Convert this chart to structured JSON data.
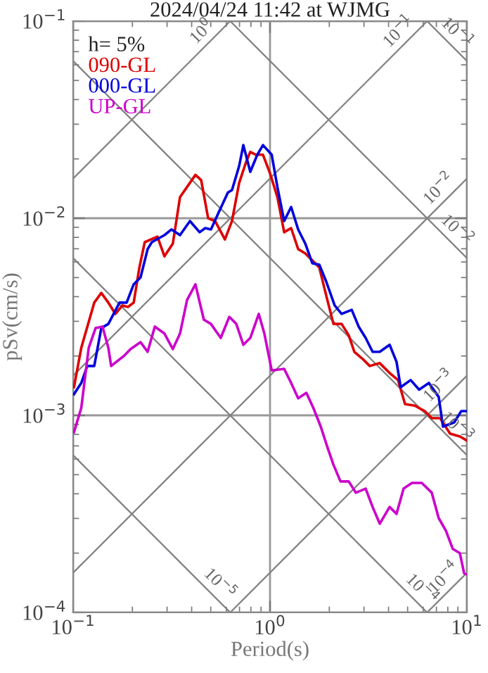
{
  "chart_data": {
    "type": "line",
    "title": "2024/04/24 11:42 at WJMG",
    "xlabel": "Period(s)",
    "ylabel": "pSv(cm/s)",
    "legend_title": "h= 5%",
    "legend": "top left",
    "log": "xy",
    "grid": true,
    "xlim": [
      0.1,
      10
    ],
    "ylim": [
      0.0001,
      0.1
    ],
    "xticks": [
      {
        "value": 0.1,
        "label": "10$^{−1}$"
      },
      {
        "value": 1,
        "label": "10$^{0}$"
      },
      {
        "value": 10,
        "label": "10$^{1}$"
      }
    ],
    "yticks": [
      {
        "value": 0.0001,
        "label": "10$^{−4}$"
      },
      {
        "value": 0.001,
        "label": "10$^{−3}$"
      },
      {
        "value": 0.01,
        "label": "10$^{−2}$"
      },
      {
        "value": 0.1,
        "label": "10$^{−1}$"
      }
    ],
    "series": [
      {
        "name": "090-GL",
        "color": "#dd0000",
        "x": [
          0.101,
          0.11,
          0.128,
          0.139,
          0.151,
          0.164,
          0.178,
          0.19,
          0.203,
          0.217,
          0.231,
          0.268,
          0.291,
          0.321,
          0.349,
          0.379,
          0.418,
          0.447,
          0.485,
          0.526,
          0.59,
          0.641,
          0.697,
          0.756,
          0.794,
          0.848,
          0.921,
          1.0,
          1.09,
          1.18,
          1.28,
          1.39,
          1.51,
          1.64,
          1.78,
          1.93,
          2.1,
          2.31,
          2.51,
          2.68,
          2.96,
          3.21,
          3.61,
          4.05,
          4.47,
          4.85,
          5.44,
          6.11,
          6.63,
          7.31,
          8.21,
          9.21,
          10
        ],
        "values": [
          0.00139,
          0.0022,
          0.00373,
          0.00418,
          0.00373,
          0.00327,
          0.00361,
          0.00355,
          0.00373,
          0.00562,
          0.00756,
          0.00807,
          0.00641,
          0.00744,
          0.0128,
          0.0144,
          0.0166,
          0.0156,
          0.01,
          0.00968,
          0.00781,
          0.00968,
          0.0151,
          0.0193,
          0.0217,
          0.021,
          0.021,
          0.0169,
          0.0128,
          0.00849,
          0.00891,
          0.00697,
          0.00663,
          0.00611,
          0.00562,
          0.00405,
          0.00291,
          0.00291,
          0.00255,
          0.0021,
          0.00193,
          0.00178,
          0.00184,
          0.00164,
          0.00151,
          0.00114,
          0.00112,
          0.00105,
          0.000968,
          0.000968,
          0.000807,
          0.000781,
          0.000744
        ]
      },
      {
        "name": "000-GL",
        "color": "#0000dd",
        "x": [
          0.101,
          0.11,
          0.118,
          0.128,
          0.139,
          0.151,
          0.172,
          0.187,
          0.203,
          0.22,
          0.239,
          0.251,
          0.291,
          0.316,
          0.349,
          0.392,
          0.439,
          0.469,
          0.501,
          0.544,
          0.611,
          0.641,
          0.697,
          0.732,
          0.794,
          0.862,
          0.921,
          1.02,
          1.09,
          1.18,
          1.28,
          1.39,
          1.51,
          1.64,
          1.78,
          1.93,
          2.13,
          2.31,
          2.6,
          2.82,
          3.06,
          3.32,
          3.61,
          4.05,
          4.39,
          4.61,
          5.18,
          5.72,
          6.41,
          7.19,
          7.56,
          8.62,
          9.36,
          10
        ],
        "values": [
          0.00128,
          0.00146,
          0.00178,
          0.00178,
          0.00277,
          0.00291,
          0.00373,
          0.00373,
          0.00462,
          0.00501,
          0.00697,
          0.00756,
          0.00821,
          0.00877,
          0.00821,
          0.00968,
          0.00849,
          0.00891,
          0.00877,
          0.0105,
          0.0135,
          0.0139,
          0.0184,
          0.0235,
          0.0172,
          0.021,
          0.0235,
          0.021,
          0.0144,
          0.00968,
          0.0114,
          0.00877,
          0.00744,
          0.00591,
          0.00581,
          0.00477,
          0.00361,
          0.00327,
          0.00343,
          0.00282,
          0.00247,
          0.0021,
          0.0021,
          0.00228,
          0.00187,
          0.00139,
          0.00151,
          0.00135,
          0.00146,
          0.00124,
          0.000877,
          0.000921,
          0.00105,
          0.00105
        ]
      },
      {
        "name": "UP-GL",
        "color": "#cc00cc",
        "x": [
          0.101,
          0.11,
          0.12,
          0.13,
          0.141,
          0.151,
          0.156,
          0.166,
          0.181,
          0.196,
          0.22,
          0.239,
          0.26,
          0.291,
          0.321,
          0.349,
          0.379,
          0.418,
          0.461,
          0.501,
          0.562,
          0.621,
          0.674,
          0.732,
          0.794,
          0.877,
          0.936,
          1.02,
          1.18,
          1.28,
          1.39,
          1.53,
          1.66,
          1.81,
          1.96,
          2.1,
          2.28,
          2.51,
          2.73,
          3.06,
          3.32,
          3.61,
          4.05,
          4.39,
          4.77,
          5.26,
          5.9,
          6.63,
          7.19,
          7.82,
          8.48,
          9.21,
          9.68,
          10
        ],
        "values": [
          0.000821,
          0.00109,
          0.0022,
          0.00277,
          0.00282,
          0.0022,
          0.00178,
          0.00187,
          0.002,
          0.00217,
          0.00235,
          0.0021,
          0.00282,
          0.0026,
          0.00217,
          0.0026,
          0.00385,
          0.00462,
          0.00306,
          0.00291,
          0.00247,
          0.00316,
          0.00291,
          0.00228,
          0.00247,
          0.00327,
          0.0026,
          0.00169,
          0.00172,
          0.00146,
          0.00122,
          0.0013,
          0.00109,
          0.000877,
          0.000686,
          0.000562,
          0.000462,
          0.000462,
          0.000405,
          0.000425,
          0.000343,
          0.000282,
          0.000343,
          0.000316,
          0.000425,
          0.000454,
          0.000454,
          0.000405,
          0.000301,
          0.00026,
          0.00021,
          0.0002,
          0.000158,
          0.000156
        ]
      },
      {
        "color": "#808080",
        "x": [
          0.1,
          0.628
        ],
        "values": [
          0.0159,
          0.1
        ]
      },
      {
        "color": "#808080",
        "x": [
          0.1,
          6.28
        ],
        "values": [
          0.00159,
          0.1
        ]
      },
      {
        "color": "#808080",
        "x": [
          0.1,
          10
        ],
        "values": [
          0.000159,
          0.0159
        ]
      },
      {
        "color": "#808080",
        "x": [
          0.628,
          10
        ],
        "values": [
          0.0001,
          0.00159
        ]
      },
      {
        "color": "#808080",
        "x": [
          6.28,
          10
        ],
        "values": [
          0.0001,
          0.000159
        ]
      },
      {
        "color": "#808080",
        "x": [
          6.28,
          10
        ],
        "values": [
          0.1,
          0.0628
        ]
      },
      {
        "color": "#808080",
        "x": [
          0.628,
          10
        ],
        "values": [
          0.1,
          0.00628
        ]
      },
      {
        "color": "#808080",
        "x": [
          0.1,
          10
        ],
        "values": [
          0.0628,
          0.000628
        ]
      },
      {
        "color": "#808080",
        "x": [
          0.1,
          6.28
        ],
        "values": [
          0.00628,
          0.0001
        ]
      },
      {
        "color": "#808080",
        "x": [
          0.1,
          0.628
        ],
        "values": [
          0.000628,
          0.0001
        ]
      }
    ],
    "annotations": [
      {
        "text": "10$^{0}$",
        "x": 0.5,
        "y": 0.0796
      },
      {
        "text": "10$^{−1}$",
        "x": 5,
        "y": 0.0796
      },
      {
        "text": "10$^{−2}$",
        "x": 8,
        "y": 0.0127
      },
      {
        "text": "10$^{−3}$",
        "x": 8,
        "y": 0.00127
      },
      {
        "text": "10$^{−4}$",
        "x": 8.5,
        "y": 0.000135
      },
      {
        "text": "10$^{−1}$",
        "x": 8,
        "y": 0.0785
      },
      {
        "text": "10$^{−2}$",
        "x": 8,
        "y": 0.00785
      },
      {
        "text": "10$^{−3}$",
        "x": 8,
        "y": 0.000785
      },
      {
        "text": "10$^{−4}$",
        "x": 5.3,
        "y": 0.000118
      },
      {
        "text": "10$^{−5}$",
        "x": 0.5,
        "y": 0.000126
      }
    ]
  }
}
